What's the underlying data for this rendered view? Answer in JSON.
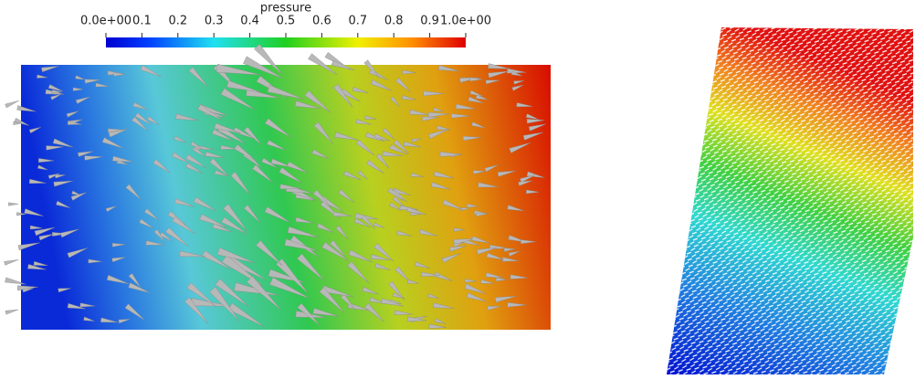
{
  "colorbar": {
    "title": "pressure",
    "range": [
      0,
      1
    ],
    "ticks": [
      {
        "value": 0,
        "label": "0.0e+00"
      },
      0.1,
      0.2,
      0.3,
      0.4,
      0.5,
      0.6,
      0.7,
      0.8,
      0.9,
      {
        "value": 1,
        "label": "1.0e+00"
      }
    ]
  }
}
